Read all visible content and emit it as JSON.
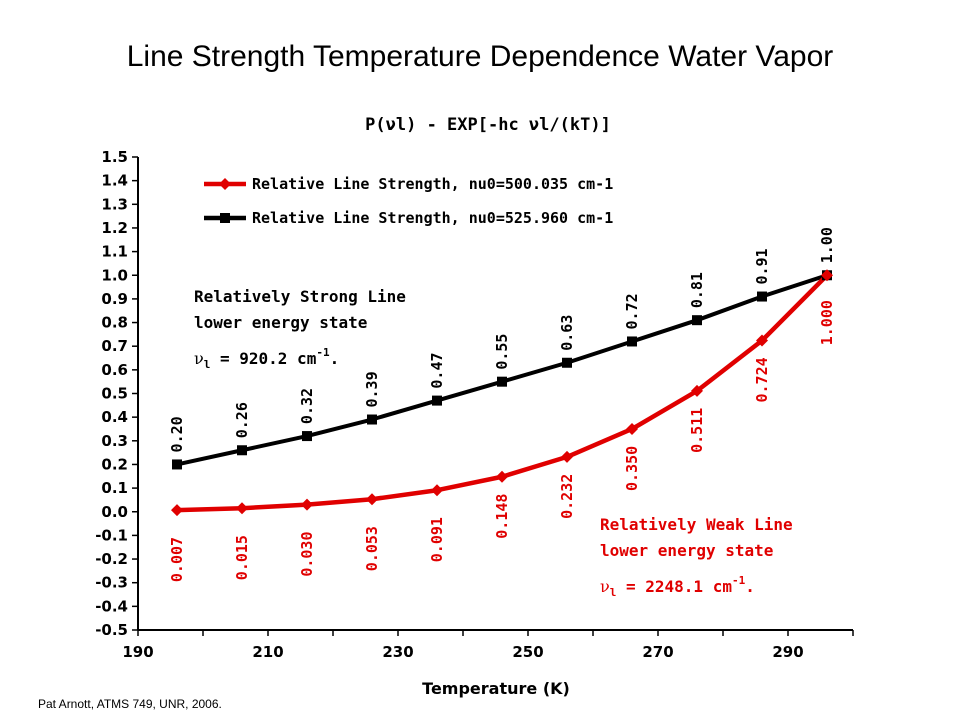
{
  "slide": {
    "title": "Line Strength Temperature Dependence Water Vapor",
    "footer": "Pat Arnott, ATMS 749, UNR, 2006."
  },
  "chart_data": {
    "type": "line",
    "title": "P(νl) - EXP[-hc νl/(kT)]",
    "xlabel": "Temperature (K)",
    "ylabel": "",
    "xlim": [
      190,
      300
    ],
    "ylim": [
      -0.5,
      1.5
    ],
    "x_ticks": [
      "190",
      "210",
      "230",
      "250",
      "270",
      "290"
    ],
    "y_ticks": [
      "1.5",
      "1.4",
      "1.3",
      "1.2",
      "1.1",
      "1.0",
      "0.9",
      "0.8",
      "0.7",
      "0.6",
      "0.5",
      "0.4",
      "0.3",
      "0.2",
      "0.1",
      "0.0",
      "-0.1",
      "-0.2",
      "-0.3",
      "-0.4",
      "-0.5"
    ],
    "grid": false,
    "legend_position": "top-left",
    "x": [
      196,
      206,
      216,
      226,
      236,
      246,
      256,
      266,
      276,
      286,
      296
    ],
    "series": [
      {
        "name": "Relative Line Strength, nu0=500.035 cm-1",
        "color": "#e00000",
        "marker": "diamond",
        "values": [
          0.007,
          0.015,
          0.03,
          0.053,
          0.091,
          0.148,
          0.232,
          0.35,
          0.511,
          0.724,
          1.0
        ],
        "labels": [
          "0.007",
          "0.015",
          "0.030",
          "0.053",
          "0.091",
          "0.148",
          "0.232",
          "0.350",
          "0.511",
          "0.724",
          "1.000"
        ]
      },
      {
        "name": "Relative Line Strength, nu0=525.960 cm-1",
        "color": "#000000",
        "marker": "square",
        "values": [
          0.2,
          0.26,
          0.32,
          0.39,
          0.47,
          0.55,
          0.63,
          0.72,
          0.81,
          0.91,
          1.0
        ],
        "labels": [
          "0.20",
          "0.26",
          "0.32",
          "0.39",
          "0.47",
          "0.55",
          "0.63",
          "0.72",
          "0.81",
          "0.91",
          "1.00"
        ]
      }
    ],
    "annotations": {
      "strong": {
        "color": "#000000",
        "line1": "Relatively Strong Line",
        "line2": "lower energy state",
        "nu_symbol": "ν",
        "nu_sub": "l",
        "nu_value": " = 920.2 cm",
        "nu_exp": "-1",
        "nu_end": "."
      },
      "weak": {
        "color": "#e00000",
        "line1": "Relatively Weak Line",
        "line2": "lower energy state",
        "nu_symbol": "ν",
        "nu_sub": "l",
        "nu_value": " = 2248.1 cm",
        "nu_exp": "-1",
        "nu_end": "."
      }
    }
  }
}
